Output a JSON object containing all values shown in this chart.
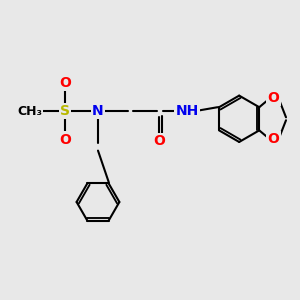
{
  "bg_color": "#e8e8e8",
  "bond_color": "#000000",
  "bond_width": 1.5,
  "atom_colors": {
    "S": "#b8b800",
    "N": "#0000ee",
    "O": "#ff0000",
    "H": "#5a8a8a",
    "C": "#000000"
  },
  "font_size_atom": 10,
  "font_size_small": 9
}
